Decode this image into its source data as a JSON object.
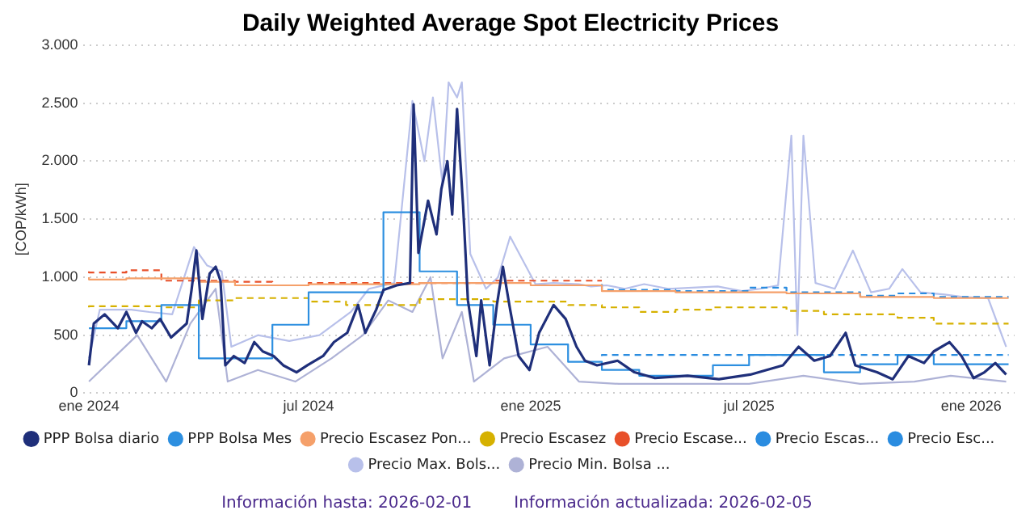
{
  "chart_data": {
    "type": "line",
    "title": "Daily Weighted Average Spot Electricity Prices",
    "ylabel": "[COP/kWh]",
    "annotations": [
      "Información hasta: 2026-02-01",
      "Información actualizada: 2026-02-05"
    ],
    "xlim": [
      "2023-12-27",
      "2026-02-06"
    ],
    "xticks": [
      {
        "value": "2024-01-01",
        "label": "ene 2024"
      },
      {
        "value": "2024-07-01",
        "label": "jul 2024"
      },
      {
        "value": "2025-01-01",
        "label": "ene 2025"
      },
      {
        "value": "2025-07-01",
        "label": "jul 2025"
      },
      {
        "value": "2026-01-01",
        "label": "ene 2026"
      }
    ],
    "ylim": [
      0,
      3000
    ],
    "yticks": [
      0,
      {
        "value": 500,
        "label": "500"
      },
      {
        "value": 1000,
        "label": "1.000"
      },
      {
        "value": 1500,
        "label": "1.500"
      },
      {
        "value": 2000,
        "label": "2.000"
      },
      {
        "value": 2500,
        "label": "2.500"
      },
      {
        "value": 3000,
        "label": "3.000"
      }
    ],
    "grid": "y",
    "legend": "bottom",
    "marker": "none",
    "series": [
      {
        "name": "PPP Bolsa Mes",
        "type": "step",
        "color": "#2d8fe0",
        "x": [
          "2024-01-01",
          "2024-02-01",
          "2024-03-01",
          "2024-04-01",
          "2024-05-01",
          "2024-06-01",
          "2024-07-01",
          "2024-08-01",
          "2024-09-01",
          "2024-10-01",
          "2024-11-01",
          "2024-12-01",
          "2025-01-01",
          "2025-02-01",
          "2025-03-01",
          "2025-04-01",
          "2025-05-01",
          "2025-06-01",
          "2025-07-01",
          "2025-08-01",
          "2025-09-01",
          "2025-10-01",
          "2025-11-01",
          "2025-12-01",
          "2026-01-01",
          "2026-02-01"
        ],
        "values": [
          560,
          560,
          620,
          760,
          300,
          300,
          590,
          870,
          870,
          1560,
          1050,
          760,
          590,
          420,
          270,
          200,
          150,
          150,
          240,
          330,
          330,
          180,
          250,
          330,
          250,
          250
        ]
      },
      {
        "name": "Precio Escasez Pon...",
        "type": "step",
        "color": "#f5a06a",
        "x": [
          "2024-01-01",
          "2024-02-01",
          "2024-04-01",
          "2024-05-01",
          "2024-07-01",
          "2024-08-01",
          "2024-10-01",
          "2025-01-01",
          "2025-03-01",
          "2025-05-01",
          "2025-08-01",
          "2025-10-01",
          "2025-12-01",
          "2026-02-01"
        ],
        "values": [
          1000,
          980,
          990,
          960,
          930,
          940,
          940,
          950,
          930,
          880,
          870,
          860,
          830,
          820
        ]
      },
      {
        "name": "Precio Min. Bolsa ...",
        "color": "#aeb2d6",
        "x": [
          "2024-01-01",
          "2024-02-10",
          "2024-03-05",
          "2024-03-25",
          "2024-04-15",
          "2024-04-25",
          "2024-05-20",
          "2024-06-20",
          "2024-07-20",
          "2024-08-15",
          "2024-09-05",
          "2024-09-25",
          "2024-10-10",
          "2024-10-20",
          "2024-11-05",
          "2024-11-15",
          "2024-12-10",
          "2025-01-15",
          "2025-02-10",
          "2025-03-15",
          "2025-05-01",
          "2025-07-01",
          "2025-08-15",
          "2025-10-01",
          "2025-11-15",
          "2025-12-15",
          "2026-01-30"
        ],
        "values": [
          100,
          500,
          100,
          600,
          900,
          100,
          200,
          100,
          300,
          500,
          800,
          700,
          1000,
          300,
          700,
          100,
          300,
          400,
          100,
          80,
          80,
          80,
          150,
          80,
          100,
          150,
          100
        ]
      },
      {
        "name": "Precio Max. Bols...",
        "color": "#b8c0ea",
        "x": [
          "2024-01-01",
          "2024-01-10",
          "2024-02-05",
          "2024-02-20",
          "2024-03-10",
          "2024-03-28",
          "2024-04-08",
          "2024-04-20",
          "2024-04-28",
          "2024-05-20",
          "2024-06-15",
          "2024-07-10",
          "2024-08-05",
          "2024-08-20",
          "2024-09-10",
          "2024-09-25",
          "2024-10-05",
          "2024-10-12",
          "2024-10-20",
          "2024-10-25",
          "2024-11-01",
          "2024-11-05",
          "2024-11-12",
          "2024-11-25",
          "2024-12-05",
          "2024-12-15",
          "2025-01-05",
          "2025-01-20",
          "2025-02-10",
          "2025-02-20",
          "2025-03-05",
          "2025-03-20",
          "2025-04-05",
          "2025-04-25",
          "2025-05-15",
          "2025-06-05",
          "2025-06-25",
          "2025-07-10",
          "2025-07-25",
          "2025-08-05",
          "2025-08-10",
          "2025-08-15",
          "2025-08-25",
          "2025-09-10",
          "2025-09-25",
          "2025-10-10",
          "2025-10-25",
          "2025-11-05",
          "2025-11-20",
          "2025-12-10",
          "2025-12-25",
          "2026-01-15",
          "2026-01-30"
        ],
        "values": [
          300,
          720,
          720,
          700,
          680,
          1260,
          1100,
          1050,
          400,
          500,
          450,
          500,
          700,
          900,
          950,
          2520,
          2000,
          2550,
          1800,
          2680,
          2550,
          2680,
          1200,
          900,
          1000,
          1350,
          940,
          950,
          940,
          920,
          930,
          900,
          940,
          900,
          910,
          920,
          880,
          900,
          930,
          2220,
          500,
          2220,
          950,
          900,
          1230,
          870,
          900,
          1070,
          870,
          850,
          830,
          820,
          400
        ]
      },
      {
        "name": "PPP Bolsa diario",
        "color": "#1f2f7a",
        "x": [
          "2024-01-01",
          "2024-01-05",
          "2024-01-14",
          "2024-01-25",
          "2024-02-01",
          "2024-02-09",
          "2024-02-14",
          "2024-02-22",
          "2024-02-29",
          "2024-03-09",
          "2024-03-22",
          "2024-03-26",
          "2024-03-30",
          "2024-04-04",
          "2024-04-10",
          "2024-04-15",
          "2024-04-19",
          "2024-04-23",
          "2024-04-30",
          "2024-05-09",
          "2024-05-17",
          "2024-05-24",
          "2024-06-02",
          "2024-06-10",
          "2024-06-21",
          "2024-06-30",
          "2024-07-13",
          "2024-07-22",
          "2024-08-02",
          "2024-08-11",
          "2024-08-17",
          "2024-08-26",
          "2024-09-01",
          "2024-09-12",
          "2024-09-23",
          "2024-09-26",
          "2024-09-30",
          "2024-10-08",
          "2024-10-15",
          "2024-10-19",
          "2024-10-24",
          "2024-10-28",
          "2024-11-01",
          "2024-11-06",
          "2024-11-10",
          "2024-11-17",
          "2024-11-21",
          "2024-11-28",
          "2024-12-04",
          "2024-12-09",
          "2024-12-15",
          "2024-12-22",
          "2024-12-31",
          "2025-01-08",
          "2025-01-20",
          "2025-01-30",
          "2025-02-08",
          "2025-02-15",
          "2025-02-25",
          "2025-03-14",
          "2025-03-28",
          "2025-04-14",
          "2025-05-11",
          "2025-06-06",
          "2025-07-02",
          "2025-07-29",
          "2025-08-11",
          "2025-08-24",
          "2025-09-06",
          "2025-09-19",
          "2025-09-27",
          "2025-10-15",
          "2025-10-28",
          "2025-11-10",
          "2025-11-23",
          "2025-12-01",
          "2025-12-14",
          "2025-12-24",
          "2026-01-03",
          "2026-01-12",
          "2026-01-21",
          "2026-01-30"
        ],
        "values": [
          240,
          600,
          680,
          560,
          700,
          520,
          620,
          560,
          640,
          480,
          600,
          890,
          1230,
          640,
          1030,
          1090,
          970,
          240,
          320,
          260,
          440,
          360,
          320,
          240,
          180,
          240,
          320,
          440,
          520,
          760,
          520,
          720,
          890,
          930,
          950,
          2490,
          1210,
          1660,
          1370,
          1760,
          2000,
          1540,
          2450,
          1620,
          800,
          320,
          800,
          240,
          760,
          1090,
          720,
          320,
          200,
          520,
          760,
          640,
          400,
          280,
          240,
          280,
          180,
          130,
          150,
          120,
          160,
          240,
          400,
          280,
          320,
          520,
          240,
          180,
          120,
          320,
          260,
          360,
          440,
          320,
          130,
          180,
          260,
          160
        ]
      },
      {
        "name": "Precio Escasez",
        "type": "step",
        "line_style": "dashed",
        "color": "#d6b100",
        "x": [
          "2024-01-01",
          "2024-03-01",
          "2024-04-01",
          "2024-05-01",
          "2024-07-01",
          "2024-08-01",
          "2024-10-01",
          "2024-12-01",
          "2025-02-01",
          "2025-03-01",
          "2025-04-01",
          "2025-05-01",
          "2025-06-01",
          "2025-08-01",
          "2025-09-01",
          "2025-11-01",
          "2025-12-01",
          "2026-01-01",
          "2026-02-01"
        ],
        "values": [
          740,
          750,
          740,
          800,
          820,
          790,
          760,
          810,
          790,
          760,
          740,
          700,
          720,
          740,
          710,
          680,
          650,
          600,
          600
        ]
      },
      {
        "name": "Precio Escase...",
        "type": "step",
        "line_style": "dashed",
        "color": "#e8502a",
        "x": [
          "2024-01-01",
          "2024-02-01",
          "2024-03-01",
          "2024-05-01",
          "2024-06-01",
          "2024-07-01",
          "2024-09-01",
          "2024-12-01",
          "2025-01-01",
          "2025-03-01"
        ],
        "values": [
          1050,
          1040,
          1060,
          970,
          960,
          930,
          950,
          950,
          970,
          970
        ]
      },
      {
        "name": "Precio Escas...",
        "type": "step",
        "line_style": "dashed",
        "color": "#2a8ce0",
        "x": [
          "2025-03-01",
          "2025-05-01",
          "2025-07-01",
          "2025-08-01",
          "2025-10-01",
          "2025-11-01",
          "2025-12-01",
          "2026-01-01",
          "2026-02-01"
        ],
        "values": [
          940,
          890,
          880,
          910,
          870,
          840,
          860,
          830,
          830
        ]
      },
      {
        "name": "Precio Esc...",
        "type": "step",
        "line_style": "dashed",
        "color": "#2a8ce0",
        "x": [
          "2025-03-01",
          "2025-06-01",
          "2026-02-01"
        ],
        "values": [
          320,
          330,
          330
        ]
      }
    ]
  }
}
